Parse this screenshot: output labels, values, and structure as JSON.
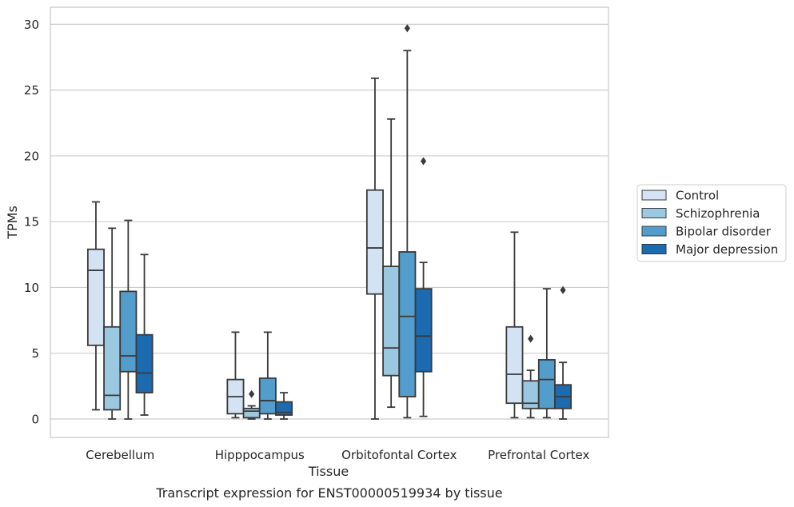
{
  "chart_data": {
    "type": "box",
    "caption": "Transcript expression for ENST00000519934 by tissue",
    "xlabel": "Tissue",
    "ylabel": "TPMs",
    "ylim": [
      -1.4,
      31.3
    ],
    "yticks": [
      0,
      5,
      10,
      15,
      20,
      25,
      30
    ],
    "grid": true,
    "legend_position": "right",
    "categories": [
      "Cerebellum",
      "Hipppocampus",
      "Orbitofontal Cortex",
      "Prefrontal Cortex"
    ],
    "series": [
      {
        "name": "Control",
        "color": "#d3e3f3",
        "boxes": [
          {
            "whisker_low": 0.7,
            "q1": 5.6,
            "median": 11.3,
            "q3": 12.9,
            "whisker_high": 16.5,
            "outliers": []
          },
          {
            "whisker_low": 0.1,
            "q1": 0.4,
            "median": 1.7,
            "q3": 3.0,
            "whisker_high": 6.6,
            "outliers": []
          },
          {
            "whisker_low": 0.0,
            "q1": 9.5,
            "median": 13.0,
            "q3": 17.4,
            "whisker_high": 25.9,
            "outliers": []
          },
          {
            "whisker_low": 0.1,
            "q1": 1.2,
            "median": 3.4,
            "q3": 7.0,
            "whisker_high": 14.2,
            "outliers": []
          }
        ]
      },
      {
        "name": "Schizophrenia",
        "color": "#9ac8e0",
        "boxes": [
          {
            "whisker_low": 0.0,
            "q1": 0.7,
            "median": 1.8,
            "q3": 7.0,
            "whisker_high": 14.5,
            "outliers": []
          },
          {
            "whisker_low": 0.0,
            "q1": 0.1,
            "median": 0.6,
            "q3": 0.8,
            "whisker_high": 1.0,
            "outliers": [
              1.9
            ]
          },
          {
            "whisker_low": 0.9,
            "q1": 3.3,
            "median": 5.4,
            "q3": 11.6,
            "whisker_high": 22.8,
            "outliers": []
          },
          {
            "whisker_low": 0.1,
            "q1": 0.8,
            "median": 1.2,
            "q3": 2.9,
            "whisker_high": 3.7,
            "outliers": [
              6.1
            ]
          }
        ]
      },
      {
        "name": "Bipolar disorder",
        "color": "#529dcc",
        "boxes": [
          {
            "whisker_low": 0.0,
            "q1": 3.6,
            "median": 4.8,
            "q3": 9.7,
            "whisker_high": 15.1,
            "outliers": []
          },
          {
            "whisker_low": 0.0,
            "q1": 0.4,
            "median": 1.4,
            "q3": 3.1,
            "whisker_high": 6.6,
            "outliers": []
          },
          {
            "whisker_low": 0.1,
            "q1": 1.7,
            "median": 7.8,
            "q3": 12.7,
            "whisker_high": 28.0,
            "outliers": [
              29.7
            ]
          },
          {
            "whisker_low": 0.1,
            "q1": 0.8,
            "median": 3.0,
            "q3": 4.5,
            "whisker_high": 9.9,
            "outliers": []
          }
        ]
      },
      {
        "name": "Major depression",
        "color": "#1c6aaf",
        "boxes": [
          {
            "whisker_low": 0.3,
            "q1": 2.0,
            "median": 3.5,
            "q3": 6.4,
            "whisker_high": 12.5,
            "outliers": []
          },
          {
            "whisker_low": 0.0,
            "q1": 0.3,
            "median": 0.5,
            "q3": 1.3,
            "whisker_high": 2.0,
            "outliers": []
          },
          {
            "whisker_low": 0.2,
            "q1": 3.6,
            "median": 6.3,
            "q3": 9.9,
            "whisker_high": 11.9,
            "outliers": [
              19.6
            ]
          },
          {
            "whisker_low": 0.0,
            "q1": 0.8,
            "median": 1.7,
            "q3": 2.6,
            "whisker_high": 4.3,
            "outliers": [
              9.8
            ]
          }
        ]
      }
    ]
  }
}
